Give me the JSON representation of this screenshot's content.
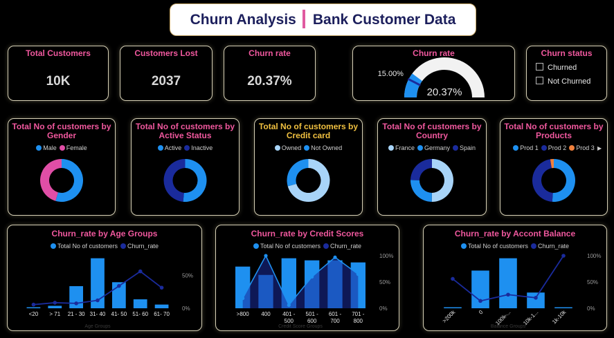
{
  "header": {
    "title_left": "Churn Analysis",
    "title_right": "Bank Customer Data"
  },
  "kpis": [
    {
      "label": "Total Customers",
      "value": "10K"
    },
    {
      "label": "Customers Lost",
      "value": "2037"
    },
    {
      "label": "Churn rate",
      "value": "20.37%"
    }
  ],
  "gauge": {
    "title": "Churn rate",
    "value": 20.37,
    "value_label": "20.37%",
    "target": 15.0,
    "target_label": "15.00%",
    "min": 0,
    "max": 100
  },
  "slicer": {
    "title": "Churn status",
    "options": [
      "Churned",
      "Not Churned"
    ]
  },
  "colors": {
    "blue": "#1e90f0",
    "navy": "#1a2b9c",
    "pink": "#e04ea6",
    "light": "#a8d4f8",
    "orange": "#f0803c",
    "title_pink": "#f0589e",
    "gold_border": "#d8d2b8"
  },
  "chart_data": [
    {
      "type": "pie",
      "donut": true,
      "title": "Total No of customers by Gender",
      "categories": [
        "Male",
        "Female"
      ],
      "values": [
        5457,
        4543
      ],
      "colors": [
        "#1e90f0",
        "#e04ea6"
      ]
    },
    {
      "type": "pie",
      "donut": true,
      "title": "Total No of customers by Active Status",
      "categories": [
        "Active",
        "Inactive"
      ],
      "values": [
        5151,
        4849
      ],
      "colors": [
        "#1e90f0",
        "#1a2b9c"
      ]
    },
    {
      "type": "pie",
      "donut": true,
      "title": "Total No of customers by Credit card",
      "title_color": "#f0c040",
      "categories": [
        "Owned",
        "Not Owned"
      ],
      "values": [
        7055,
        2945
      ],
      "colors": [
        "#a8d4f8",
        "#1e90f0"
      ]
    },
    {
      "type": "pie",
      "donut": true,
      "title": "Total No of customers by Country",
      "categories": [
        "France",
        "Germany",
        "Spain"
      ],
      "values": [
        5014,
        2509,
        2477
      ],
      "colors": [
        "#a8d4f8",
        "#1e90f0",
        "#1a2b9c"
      ]
    },
    {
      "type": "pie",
      "donut": true,
      "title": "Total No of customers by Products",
      "categories": [
        "Prod 1",
        "Prod 2",
        "Prod 3"
      ],
      "values": [
        5084,
        4590,
        266
      ],
      "colors": [
        "#1e90f0",
        "#1a2b9c",
        "#f0803c"
      ]
    },
    {
      "type": "bar",
      "title": "Churn_rate by Age Groups",
      "xlabel": "Age Groups",
      "categories": [
        "<20",
        "> 71",
        "21 - 30",
        "31- 40",
        "41- 50",
        "51- 60",
        "61- 70"
      ],
      "series": [
        {
          "name": "Total No of customers",
          "type": "bar",
          "values": [
            89,
            220,
            1968,
            4451,
            2320,
            797,
            331
          ]
        },
        {
          "name": "Churn_rate",
          "type": "line",
          "values": [
            5.6,
            8.5,
            7.5,
            12.1,
            34.0,
            56.2,
            31.4
          ]
        }
      ],
      "y2_ticks": [
        "0%",
        "50%"
      ],
      "y2lim": [
        0,
        80
      ]
    },
    {
      "type": "area",
      "title": "Churn_rate by Credit Scores",
      "xlabel": "Credit Score Groups",
      "categories": [
        ">800",
        "400",
        "401 -\n500",
        "501 -\n600",
        "601 -\n700",
        "701 -\n800"
      ],
      "series": [
        {
          "name": "Total No of customers",
          "type": "bar",
          "values": [
            2.0,
            1.6,
            2.4,
            2.3,
            2.3,
            2.2
          ]
        },
        {
          "name": "Churn_rate",
          "type": "area",
          "values": [
            19,
            100,
            6,
            60,
            97,
            65
          ]
        }
      ],
      "y2_ticks": [
        "0%",
        "50%",
        "100%"
      ],
      "y2lim": [
        0,
        100
      ]
    },
    {
      "type": "bar",
      "title": "Churn_rate by Accont Balance",
      "xlabel": "Balance Groups",
      "categories": [
        ">200k",
        "0",
        "100k-...",
        "10k-1...",
        "1k-10k"
      ],
      "series": [
        {
          "name": "Total No of customers",
          "type": "bar",
          "values": [
            2,
            3617,
            4799,
            1509,
            2
          ]
        },
        {
          "name": "Churn_rate",
          "type": "line",
          "values": [
            56,
            14,
            26,
            20,
            100
          ]
        }
      ],
      "y2_ticks": [
        "0%",
        "50%",
        "100%"
      ],
      "y2lim": [
        0,
        100
      ]
    }
  ]
}
